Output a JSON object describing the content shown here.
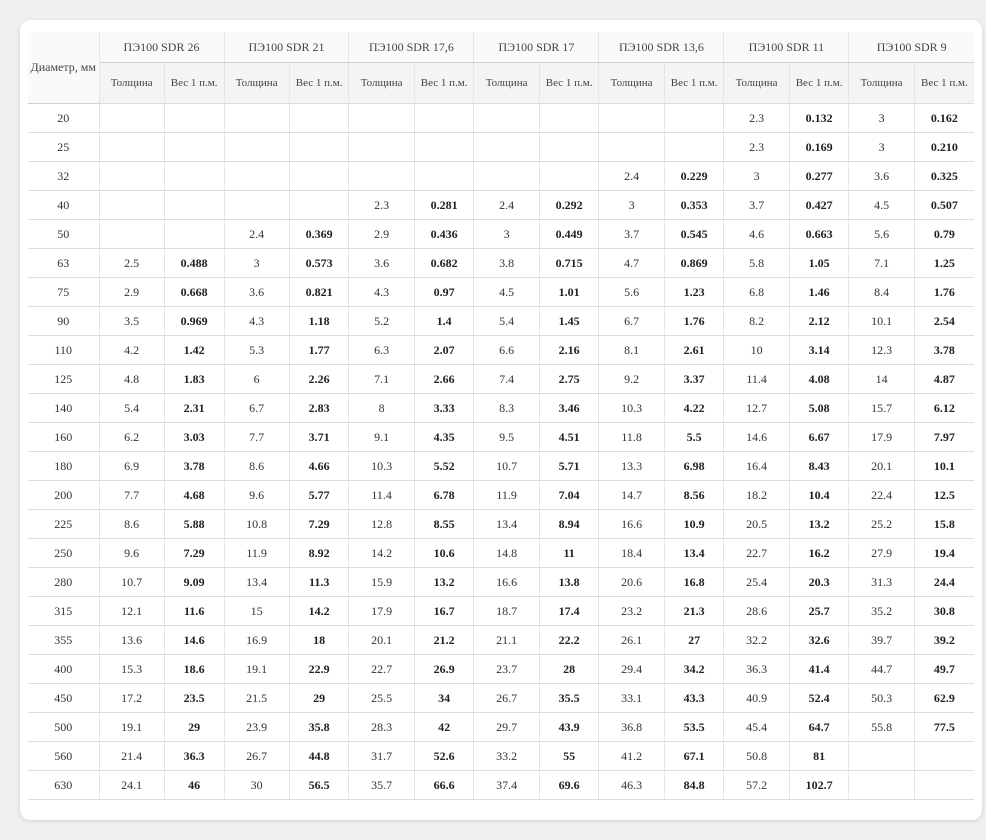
{
  "table": {
    "diam_header": "Диаметр,\nмм",
    "groups": [
      "ПЭ100 SDR 26",
      "ПЭ100 SDR 21",
      "ПЭ100 SDR 17,6",
      "ПЭ100 SDR 17",
      "ПЭ100 SDR 13,6",
      "ПЭ100 SDR 11",
      "ПЭ100 SDR 9"
    ],
    "sub_thickness": "Толщина",
    "sub_weight": "Вес 1\nп.м.",
    "rows": [
      {
        "d": "20",
        "v": [
          [
            "",
            ""
          ],
          [
            "",
            ""
          ],
          [
            "",
            ""
          ],
          [
            "",
            ""
          ],
          [
            "",
            ""
          ],
          [
            "2.3",
            "0.132"
          ],
          [
            "3",
            "0.162"
          ]
        ]
      },
      {
        "d": "25",
        "v": [
          [
            "",
            ""
          ],
          [
            "",
            ""
          ],
          [
            "",
            ""
          ],
          [
            "",
            ""
          ],
          [
            "",
            ""
          ],
          [
            "2.3",
            "0.169"
          ],
          [
            "3",
            "0.210"
          ]
        ]
      },
      {
        "d": "32",
        "v": [
          [
            "",
            ""
          ],
          [
            "",
            ""
          ],
          [
            "",
            ""
          ],
          [
            "",
            ""
          ],
          [
            "2.4",
            "0.229"
          ],
          [
            "3",
            "0.277"
          ],
          [
            "3.6",
            "0.325"
          ]
        ]
      },
      {
        "d": "40",
        "v": [
          [
            "",
            ""
          ],
          [
            "",
            ""
          ],
          [
            "2.3",
            "0.281"
          ],
          [
            "2.4",
            "0.292"
          ],
          [
            "3",
            "0.353"
          ],
          [
            "3.7",
            "0.427"
          ],
          [
            "4.5",
            "0.507"
          ]
        ]
      },
      {
        "d": "50",
        "v": [
          [
            "",
            ""
          ],
          [
            "2.4",
            "0.369"
          ],
          [
            "2.9",
            "0.436"
          ],
          [
            "3",
            "0.449"
          ],
          [
            "3.7",
            "0.545"
          ],
          [
            "4.6",
            "0.663"
          ],
          [
            "5.6",
            "0.79"
          ]
        ]
      },
      {
        "d": "63",
        "v": [
          [
            "2.5",
            "0.488"
          ],
          [
            "3",
            "0.573"
          ],
          [
            "3.6",
            "0.682"
          ],
          [
            "3.8",
            "0.715"
          ],
          [
            "4.7",
            "0.869"
          ],
          [
            "5.8",
            "1.05"
          ],
          [
            "7.1",
            "1.25"
          ]
        ]
      },
      {
        "d": "75",
        "v": [
          [
            "2.9",
            "0.668"
          ],
          [
            "3.6",
            "0.821"
          ],
          [
            "4.3",
            "0.97"
          ],
          [
            "4.5",
            "1.01"
          ],
          [
            "5.6",
            "1.23"
          ],
          [
            "6.8",
            "1.46"
          ],
          [
            "8.4",
            "1.76"
          ]
        ]
      },
      {
        "d": "90",
        "v": [
          [
            "3.5",
            "0.969"
          ],
          [
            "4.3",
            "1.18"
          ],
          [
            "5.2",
            "1.4"
          ],
          [
            "5.4",
            "1.45"
          ],
          [
            "6.7",
            "1.76"
          ],
          [
            "8.2",
            "2.12"
          ],
          [
            "10.1",
            "2.54"
          ]
        ]
      },
      {
        "d": "110",
        "v": [
          [
            "4.2",
            "1.42"
          ],
          [
            "5.3",
            "1.77"
          ],
          [
            "6.3",
            "2.07"
          ],
          [
            "6.6",
            "2.16"
          ],
          [
            "8.1",
            "2.61"
          ],
          [
            "10",
            "3.14"
          ],
          [
            "12.3",
            "3.78"
          ]
        ]
      },
      {
        "d": "125",
        "v": [
          [
            "4.8",
            "1.83"
          ],
          [
            "6",
            "2.26"
          ],
          [
            "7.1",
            "2.66"
          ],
          [
            "7.4",
            "2.75"
          ],
          [
            "9.2",
            "3.37"
          ],
          [
            "11.4",
            "4.08"
          ],
          [
            "14",
            "4.87"
          ]
        ]
      },
      {
        "d": "140",
        "v": [
          [
            "5.4",
            "2.31"
          ],
          [
            "6.7",
            "2.83"
          ],
          [
            "8",
            "3.33"
          ],
          [
            "8.3",
            "3.46"
          ],
          [
            "10.3",
            "4.22"
          ],
          [
            "12.7",
            "5.08"
          ],
          [
            "15.7",
            "6.12"
          ]
        ]
      },
      {
        "d": "160",
        "v": [
          [
            "6.2",
            "3.03"
          ],
          [
            "7.7",
            "3.71"
          ],
          [
            "9.1",
            "4.35"
          ],
          [
            "9.5",
            "4.51"
          ],
          [
            "11.8",
            "5.5"
          ],
          [
            "14.6",
            "6.67"
          ],
          [
            "17.9",
            "7.97"
          ]
        ]
      },
      {
        "d": "180",
        "v": [
          [
            "6.9",
            "3.78"
          ],
          [
            "8.6",
            "4.66"
          ],
          [
            "10.3",
            "5.52"
          ],
          [
            "10.7",
            "5.71"
          ],
          [
            "13.3",
            "6.98"
          ],
          [
            "16.4",
            "8.43"
          ],
          [
            "20.1",
            "10.1"
          ]
        ]
      },
      {
        "d": "200",
        "v": [
          [
            "7.7",
            "4.68"
          ],
          [
            "9.6",
            "5.77"
          ],
          [
            "11.4",
            "6.78"
          ],
          [
            "11.9",
            "7.04"
          ],
          [
            "14.7",
            "8.56"
          ],
          [
            "18.2",
            "10.4"
          ],
          [
            "22.4",
            "12.5"
          ]
        ]
      },
      {
        "d": "225",
        "v": [
          [
            "8.6",
            "5.88"
          ],
          [
            "10.8",
            "7.29"
          ],
          [
            "12.8",
            "8.55"
          ],
          [
            "13.4",
            "8.94"
          ],
          [
            "16.6",
            "10.9"
          ],
          [
            "20.5",
            "13.2"
          ],
          [
            "25.2",
            "15.8"
          ]
        ]
      },
      {
        "d": "250",
        "v": [
          [
            "9.6",
            "7.29"
          ],
          [
            "11.9",
            "8.92"
          ],
          [
            "14.2",
            "10.6"
          ],
          [
            "14.8",
            "11"
          ],
          [
            "18.4",
            "13.4"
          ],
          [
            "22.7",
            "16.2"
          ],
          [
            "27.9",
            "19.4"
          ]
        ]
      },
      {
        "d": "280",
        "v": [
          [
            "10.7",
            "9.09"
          ],
          [
            "13.4",
            "11.3"
          ],
          [
            "15.9",
            "13.2"
          ],
          [
            "16.6",
            "13.8"
          ],
          [
            "20.6",
            "16.8"
          ],
          [
            "25.4",
            "20.3"
          ],
          [
            "31.3",
            "24.4"
          ]
        ]
      },
      {
        "d": "315",
        "v": [
          [
            "12.1",
            "11.6"
          ],
          [
            "15",
            "14.2"
          ],
          [
            "17.9",
            "16.7"
          ],
          [
            "18.7",
            "17.4"
          ],
          [
            "23.2",
            "21.3"
          ],
          [
            "28.6",
            "25.7"
          ],
          [
            "35.2",
            "30.8"
          ]
        ]
      },
      {
        "d": "355",
        "v": [
          [
            "13.6",
            "14.6"
          ],
          [
            "16.9",
            "18"
          ],
          [
            "20.1",
            "21.2"
          ],
          [
            "21.1",
            "22.2"
          ],
          [
            "26.1",
            "27"
          ],
          [
            "32.2",
            "32.6"
          ],
          [
            "39.7",
            "39.2"
          ]
        ]
      },
      {
        "d": "400",
        "v": [
          [
            "15.3",
            "18.6"
          ],
          [
            "19.1",
            "22.9"
          ],
          [
            "22.7",
            "26.9"
          ],
          [
            "23.7",
            "28"
          ],
          [
            "29.4",
            "34.2"
          ],
          [
            "36.3",
            "41.4"
          ],
          [
            "44.7",
            "49.7"
          ]
        ]
      },
      {
        "d": "450",
        "v": [
          [
            "17.2",
            "23.5"
          ],
          [
            "21.5",
            "29"
          ],
          [
            "25.5",
            "34"
          ],
          [
            "26.7",
            "35.5"
          ],
          [
            "33.1",
            "43.3"
          ],
          [
            "40.9",
            "52.4"
          ],
          [
            "50.3",
            "62.9"
          ]
        ]
      },
      {
        "d": "500",
        "v": [
          [
            "19.1",
            "29"
          ],
          [
            "23.9",
            "35.8"
          ],
          [
            "28.3",
            "42"
          ],
          [
            "29.7",
            "43.9"
          ],
          [
            "36.8",
            "53.5"
          ],
          [
            "45.4",
            "64.7"
          ],
          [
            "55.8",
            "77.5"
          ]
        ]
      },
      {
        "d": "560",
        "v": [
          [
            "21.4",
            "36.3"
          ],
          [
            "26.7",
            "44.8"
          ],
          [
            "31.7",
            "52.6"
          ],
          [
            "33.2",
            "55"
          ],
          [
            "41.2",
            "67.1"
          ],
          [
            "50.8",
            "81"
          ],
          [
            "",
            ""
          ]
        ]
      },
      {
        "d": "630",
        "v": [
          [
            "24.1",
            "46"
          ],
          [
            "30",
            "56.5"
          ],
          [
            "35.7",
            "66.6"
          ],
          [
            "37.4",
            "69.6"
          ],
          [
            "46.3",
            "84.8"
          ],
          [
            "57.2",
            "102.7"
          ],
          [
            "",
            ""
          ]
        ]
      }
    ]
  },
  "style": {
    "background": "#ffffff",
    "border_color": "#dcdcdc",
    "header_bg": "#f4f4f4",
    "text_color": "#333333",
    "weight_bold": true,
    "font_family": "Georgia, serif",
    "font_size_body": 12,
    "font_size_header": 12
  }
}
